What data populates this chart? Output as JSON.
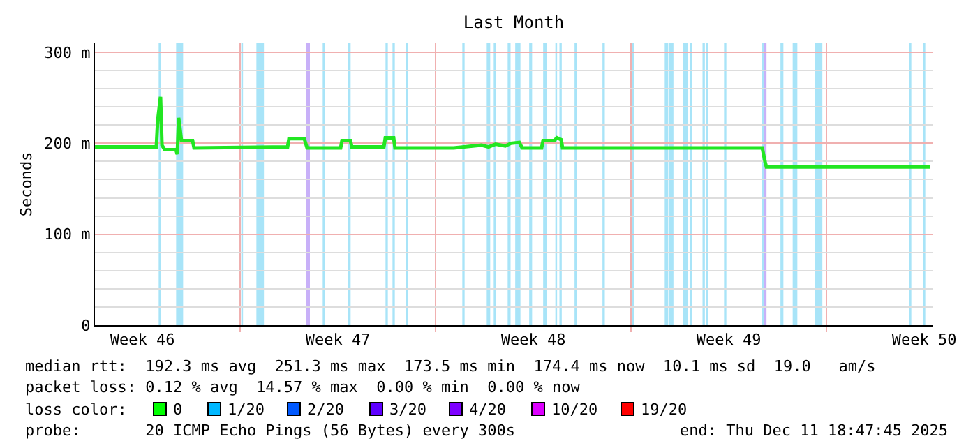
{
  "chart_data": {
    "type": "line",
    "title": "Last Month",
    "ylabel": "Seconds",
    "x": [
      "2025-11-11T19:15",
      "2025-11-14T00:00",
      "2025-11-14T01:10",
      "2025-11-14T03:35",
      "2025-11-14T04:50",
      "2025-11-14T07:10",
      "2025-11-14T16:50",
      "2025-11-14T18:00",
      "2025-11-14T19:10",
      "2025-11-14T21:35",
      "2025-11-15T07:10",
      "2025-11-15T08:25",
      "2025-11-18T16:50",
      "2025-11-18T18:00",
      "2025-11-19T07:10",
      "2025-11-19T09:35",
      "2025-11-20T14:25",
      "2025-11-20T15:35",
      "2025-11-20T22:50",
      "2025-11-21T00:00",
      "2025-11-22T03:35",
      "2025-11-22T04:50",
      "2025-11-22T12:00",
      "2025-11-22T13:10",
      "2025-11-24T15:35",
      "2025-11-25T15:35",
      "2025-11-25T21:35",
      "2025-11-26T03:35",
      "2025-11-26T12:00",
      "2025-11-26T16:50",
      "2025-11-27T00:00",
      "2025-11-27T02:25",
      "2025-11-27T19:10",
      "2025-11-27T20:25",
      "2025-11-28T06:00",
      "2025-11-28T08:25",
      "2025-11-28T12:00",
      "2025-11-28T13:10",
      "2025-12-05T16:50",
      "2025-12-05T19:10",
      "2025-12-05T20:25",
      "2025-12-11T16:50"
    ],
    "series": [
      {
        "color": "#22e622",
        "values": [
          196,
          196,
          225,
          251,
          198,
          193,
          193,
          188,
          228,
          203,
          203,
          195,
          196,
          205,
          205,
          195,
          195,
          203,
          203,
          196,
          196,
          206,
          206,
          195,
          195,
          198,
          196,
          199,
          197,
          200,
          201,
          195,
          195,
          203,
          203,
          206,
          204,
          195,
          195,
          180,
          174,
          174
        ]
      }
    ],
    "xlim": [
      "2025-11-11T19:12",
      "2025-12-11T19:12"
    ],
    "xticks": [
      {
        "value": "2025-11-13T12:00",
        "label": "Week 46"
      },
      {
        "value": "2025-11-17T00:00",
        "label": null
      },
      {
        "value": "2025-11-20T12:00",
        "label": "Week 47"
      },
      {
        "value": "2025-11-24T00:00",
        "label": null
      },
      {
        "value": "2025-11-27T12:00",
        "label": "Week 48"
      },
      {
        "value": "2025-12-01T00:00",
        "label": null
      },
      {
        "value": "2025-12-04T12:00",
        "label": "Week 49"
      },
      {
        "value": "2025-12-08T00:00",
        "label": null
      },
      {
        "value": "2025-12-11T12:00",
        "label": "Week 50"
      }
    ],
    "ylim": [
      0,
      310
    ],
    "yticks": [
      0,
      {
        "value": 20,
        "label": null
      },
      {
        "value": 40,
        "label": null
      },
      {
        "value": 60,
        "label": null
      },
      {
        "value": 80,
        "label": null
      },
      {
        "value": 100,
        "label": "100 m"
      },
      {
        "value": 120,
        "label": null
      },
      {
        "value": 140,
        "label": null
      },
      {
        "value": 160,
        "label": null
      },
      {
        "value": 180,
        "label": null
      },
      {
        "value": 200,
        "label": "200 m"
      },
      {
        "value": 220,
        "label": null
      },
      {
        "value": 240,
        "label": null
      },
      {
        "value": 260,
        "label": null
      },
      {
        "value": 280,
        "label": null
      },
      {
        "value": 300,
        "label": "300 m"
      }
    ],
    "grid": true,
    "marker": "none",
    "line_style": "solid",
    "bands": [
      {
        "axis": "x",
        "from": "2025-11-14T02:00",
        "to": "2025-11-14T04:00",
        "color": "#a8e4f8"
      },
      {
        "axis": "x",
        "from": "2025-11-14T17:00",
        "to": "2025-11-14T23:00",
        "color": "#a8e4f8"
      },
      {
        "axis": "x",
        "from": "2025-11-17T01:00",
        "to": "2025-11-17T02:30",
        "color": "#a8e4f8"
      },
      {
        "axis": "x",
        "from": "2025-11-17T14:00",
        "to": "2025-11-17T20:30",
        "color": "#a8e4f8"
      },
      {
        "axis": "x",
        "from": "2025-11-19T08:30",
        "to": "2025-11-19T12:00",
        "color": "#c8b0f8"
      },
      {
        "axis": "x",
        "from": "2025-11-19T23:00",
        "to": "2025-11-20T01:00",
        "color": "#a8e4f8"
      },
      {
        "axis": "x",
        "from": "2025-11-20T20:30",
        "to": "2025-11-20T23:00",
        "color": "#a8e4f8"
      },
      {
        "axis": "x",
        "from": "2025-11-22T05:00",
        "to": "2025-11-22T07:00",
        "color": "#a8e4f8"
      },
      {
        "axis": "x",
        "from": "2025-11-22T11:00",
        "to": "2025-11-22T13:00",
        "color": "#a8e4f8"
      },
      {
        "axis": "x",
        "from": "2025-11-22T22:30",
        "to": "2025-11-23T00:30",
        "color": "#a8e4f8"
      },
      {
        "axis": "x",
        "from": "2025-11-24T23:00",
        "to": "2025-11-25T01:00",
        "color": "#a8e4f8"
      },
      {
        "axis": "x",
        "from": "2025-11-25T20:00",
        "to": "2025-11-25T23:00",
        "color": "#a8e4f8"
      },
      {
        "axis": "x",
        "from": "2025-11-26T02:00",
        "to": "2025-11-26T04:00",
        "color": "#a8e4f8"
      },
      {
        "axis": "x",
        "from": "2025-11-26T14:00",
        "to": "2025-11-26T16:30",
        "color": "#a8e4f8"
      },
      {
        "axis": "x",
        "from": "2025-11-26T20:30",
        "to": "2025-11-27T01:00",
        "color": "#a8e4f8"
      },
      {
        "axis": "x",
        "from": "2025-11-27T08:30",
        "to": "2025-11-27T11:00",
        "color": "#a8e4f8"
      },
      {
        "axis": "x",
        "from": "2025-11-27T20:30",
        "to": "2025-11-27T23:30",
        "color": "#a8e4f8"
      },
      {
        "axis": "x",
        "from": "2025-11-28T07:00",
        "to": "2025-11-28T08:30",
        "color": "#a8e4f8"
      },
      {
        "axis": "x",
        "from": "2025-11-28T10:30",
        "to": "2025-11-28T12:30",
        "color": "#a8e4f8"
      },
      {
        "axis": "x",
        "from": "2025-11-28T23:30",
        "to": "2025-11-29T01:30",
        "color": "#a8e4f8"
      },
      {
        "axis": "x",
        "from": "2025-11-29T23:30",
        "to": "2025-11-30T01:30",
        "color": "#a8e4f8"
      },
      {
        "axis": "x",
        "from": "2025-12-01T01:00",
        "to": "2025-12-01T02:30",
        "color": "#a8e4f8"
      },
      {
        "axis": "x",
        "from": "2025-12-02T05:00",
        "to": "2025-12-02T08:00",
        "color": "#a8e4f8"
      },
      {
        "axis": "x",
        "from": "2025-12-02T09:00",
        "to": "2025-12-02T12:30",
        "color": "#a8e4f8"
      },
      {
        "axis": "x",
        "from": "2025-12-02T20:30",
        "to": "2025-12-03T01:00",
        "color": "#a8e4f8"
      },
      {
        "axis": "x",
        "from": "2025-12-03T02:30",
        "to": "2025-12-03T04:30",
        "color": "#a8e4f8"
      },
      {
        "axis": "x",
        "from": "2025-12-03T13:30",
        "to": "2025-12-03T15:30",
        "color": "#a8e4f8"
      },
      {
        "axis": "x",
        "from": "2025-12-03T16:30",
        "to": "2025-12-03T18:30",
        "color": "#a8e4f8"
      },
      {
        "axis": "x",
        "from": "2025-12-04T08:00",
        "to": "2025-12-04T10:00",
        "color": "#a8e4f8"
      },
      {
        "axis": "x",
        "from": "2025-12-05T16:30",
        "to": "2025-12-05T18:30",
        "color": "#a8e4f8"
      },
      {
        "axis": "x",
        "from": "2025-12-05T18:30",
        "to": "2025-12-05T20:30",
        "color": "#c8b0f8"
      },
      {
        "axis": "x",
        "from": "2025-12-06T08:30",
        "to": "2025-12-06T11:00",
        "color": "#a8e4f8"
      },
      {
        "axis": "x",
        "from": "2025-12-06T19:00",
        "to": "2025-12-06T23:00",
        "color": "#a8e4f8"
      },
      {
        "axis": "x",
        "from": "2025-12-07T14:00",
        "to": "2025-12-07T20:30",
        "color": "#a8e4f8"
      },
      {
        "axis": "x",
        "from": "2025-12-10T23:00",
        "to": "2025-12-11T01:00",
        "color": "#a8e4f8"
      },
      {
        "axis": "x",
        "from": "2025-12-11T11:00",
        "to": "2025-12-11T13:00",
        "color": "#a8e4f8"
      }
    ],
    "annotations": [
      "median rtt:  192.3 ms avg  251.3 ms max  173.5 ms min  174.4 ms now  10.1 ms sd  19.0   am/s",
      "packet loss: 0.12 % avg  14.57 % max  0.00 % min  0.00 % now",
      "loss color:",
      "0",
      "1/20",
      "2/20",
      "3/20",
      "4/20",
      "10/20",
      "19/20",
      "probe:       20 ICMP Echo Pings (56 Bytes) every 300s",
      "end: Thu Dec 11 18:47:45 2025"
    ]
  }
}
